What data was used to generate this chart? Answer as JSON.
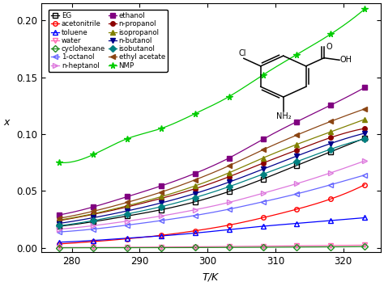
{
  "temperatures": [
    278.15,
    283.15,
    288.15,
    293.15,
    298.15,
    303.15,
    308.15,
    313.15,
    318.15,
    323.15
  ],
  "series": [
    {
      "label": "EG",
      "color": "#000000",
      "marker": "s",
      "filled": false,
      "values": [
        0.019,
        0.023,
        0.028,
        0.0335,
        0.0405,
        0.0495,
        0.0605,
        0.0725,
        0.0845,
        0.0965
      ]
    },
    {
      "label": "acetonitrile",
      "color": "#ff0000",
      "marker": "o",
      "filled": false,
      "values": [
        0.0035,
        0.0055,
        0.008,
        0.011,
        0.015,
        0.02,
        0.0265,
        0.034,
        0.043,
        0.0555
      ]
    },
    {
      "label": "toluene",
      "color": "#0000ff",
      "marker": "^",
      "filled": false,
      "values": [
        0.005,
        0.0065,
        0.0085,
        0.0105,
        0.013,
        0.016,
        0.019,
        0.0215,
        0.024,
        0.0265
      ]
    },
    {
      "label": "water",
      "color": "#ff69b4",
      "marker": "v",
      "filled": false,
      "values": [
        0.0003,
        0.0004,
        0.0005,
        0.0007,
        0.0009,
        0.0012,
        0.0015,
        0.0018,
        0.0021,
        0.0024
      ]
    },
    {
      "label": "cyclohexane",
      "color": "#228B22",
      "marker": "D",
      "filled": false,
      "values": [
        6e-05,
        9e-05,
        0.00013,
        0.00019,
        0.00027,
        0.00038,
        0.00052,
        0.00068,
        0.00086,
        0.00108
      ]
    },
    {
      "label": "1-octanol",
      "color": "#6666ff",
      "marker": "<",
      "filled": false,
      "values": [
        0.014,
        0.0165,
        0.02,
        0.024,
        0.0285,
        0.034,
        0.0405,
        0.0475,
        0.0555,
        0.064
      ]
    },
    {
      "label": "n-heptanol",
      "color": "#dd77dd",
      "marker": ">",
      "filled": false,
      "values": [
        0.0165,
        0.0195,
        0.0235,
        0.028,
        0.0335,
        0.04,
        0.048,
        0.0565,
        0.066,
        0.0765
      ]
    },
    {
      "label": "ethanol",
      "color": "#800080",
      "marker": "s",
      "filled": true,
      "values": [
        0.029,
        0.036,
        0.045,
        0.0545,
        0.0655,
        0.079,
        0.0955,
        0.111,
        0.1255,
        0.141
      ]
    },
    {
      "label": "n-propanol",
      "color": "#8B0000",
      "marker": "o",
      "filled": true,
      "values": [
        0.024,
        0.0295,
        0.036,
        0.0435,
        0.052,
        0.0625,
        0.0745,
        0.086,
        0.097,
        0.105
      ]
    },
    {
      "label": "isopropanol",
      "color": "#808000",
      "marker": "^",
      "filled": true,
      "values": [
        0.0245,
        0.03,
        0.037,
        0.045,
        0.0545,
        0.066,
        0.079,
        0.091,
        0.102,
        0.113
      ]
    },
    {
      "label": "n-butanol",
      "color": "#00008B",
      "marker": "v",
      "filled": true,
      "values": [
        0.0215,
        0.0265,
        0.0325,
        0.0395,
        0.0478,
        0.0578,
        0.0692,
        0.0808,
        0.0918,
        0.1008
      ]
    },
    {
      "label": "isobutanol",
      "color": "#008080",
      "marker": "D",
      "filled": true,
      "values": [
        0.0195,
        0.024,
        0.0298,
        0.0362,
        0.0442,
        0.0538,
        0.0648,
        0.0758,
        0.0868,
        0.0958
      ]
    },
    {
      "label": "ethyl acetate",
      "color": "#8B4513",
      "marker": "<",
      "filled": true,
      "values": [
        0.026,
        0.0322,
        0.04,
        0.049,
        0.0598,
        0.0722,
        0.0862,
        0.0992,
        0.1112,
        0.1222
      ]
    },
    {
      "label": "NMP",
      "color": "#00cc00",
      "marker": "*",
      "filled": true,
      "values": [
        0.075,
        0.082,
        0.096,
        0.105,
        0.118,
        0.133,
        0.152,
        0.17,
        0.188,
        0.21
      ]
    }
  ],
  "xlim": [
    275.5,
    325.5
  ],
  "ylim": [
    -0.004,
    0.215
  ],
  "xticks": [
    280,
    290,
    300,
    310,
    320
  ],
  "yticks": [
    0.0,
    0.05,
    0.1,
    0.15,
    0.2
  ]
}
